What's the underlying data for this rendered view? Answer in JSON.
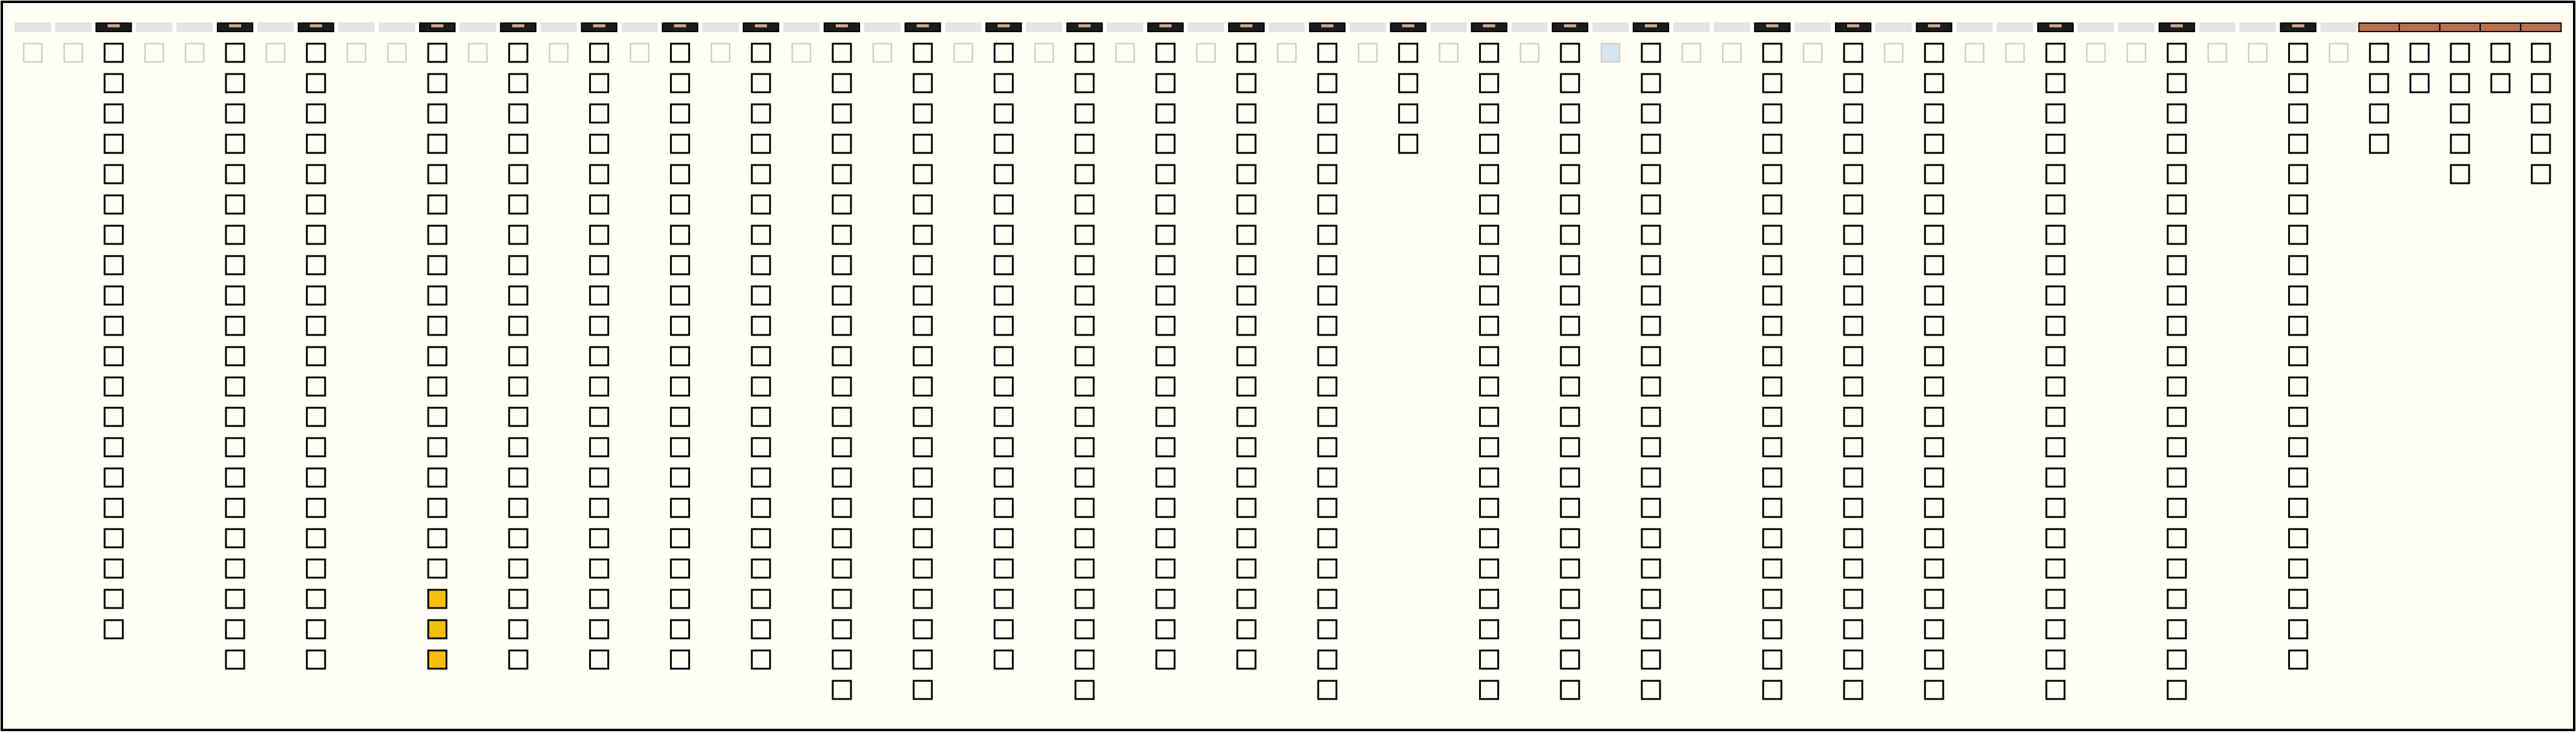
{
  "columns": [
    {
      "enabled": false,
      "header": "light",
      "checked": [
        false
      ]
    },
    {
      "enabled": false,
      "header": "light",
      "checked": [
        false
      ]
    },
    {
      "enabled": true,
      "header": "dark",
      "checked": [
        false,
        false,
        false,
        false,
        false,
        false,
        false,
        false,
        false,
        false,
        false,
        false,
        false,
        false,
        false,
        false,
        false,
        false,
        false,
        false
      ]
    },
    {
      "enabled": false,
      "header": "light",
      "checked": [
        false
      ]
    },
    {
      "enabled": false,
      "header": "light",
      "checked": [
        false
      ]
    },
    {
      "enabled": true,
      "header": "dark",
      "checked": [
        false,
        false,
        false,
        false,
        false,
        false,
        false,
        false,
        false,
        false,
        false,
        false,
        false,
        false,
        false,
        false,
        false,
        false,
        false,
        false,
        false
      ]
    },
    {
      "enabled": false,
      "header": "light",
      "checked": [
        false
      ]
    },
    {
      "enabled": true,
      "header": "dark",
      "checked": [
        false,
        false,
        false,
        false,
        false,
        false,
        false,
        false,
        false,
        false,
        false,
        false,
        false,
        false,
        false,
        false,
        false,
        false,
        false,
        false,
        false
      ]
    },
    {
      "enabled": false,
      "header": "light",
      "checked": [
        false
      ]
    },
    {
      "enabled": false,
      "header": "light",
      "checked": [
        false
      ]
    },
    {
      "enabled": true,
      "header": "dark",
      "checked": [
        false,
        false,
        false,
        false,
        false,
        false,
        false,
        false,
        false,
        false,
        false,
        false,
        false,
        false,
        false,
        false,
        false,
        false,
        true,
        true,
        true
      ]
    },
    {
      "enabled": false,
      "header": "light",
      "checked": [
        false
      ]
    },
    {
      "enabled": true,
      "header": "dark",
      "checked": [
        false,
        false,
        false,
        false,
        false,
        false,
        false,
        false,
        false,
        false,
        false,
        false,
        false,
        false,
        false,
        false,
        false,
        false,
        false,
        false,
        false
      ]
    },
    {
      "enabled": false,
      "header": "light",
      "checked": [
        false
      ]
    },
    {
      "enabled": true,
      "header": "dark",
      "checked": [
        false,
        false,
        false,
        false,
        false,
        false,
        false,
        false,
        false,
        false,
        false,
        false,
        false,
        false,
        false,
        false,
        false,
        false,
        false,
        false,
        false
      ]
    },
    {
      "enabled": false,
      "header": "light",
      "checked": [
        false
      ]
    },
    {
      "enabled": true,
      "header": "dark",
      "checked": [
        false,
        false,
        false,
        false,
        false,
        false,
        false,
        false,
        false,
        false,
        false,
        false,
        false,
        false,
        false,
        false,
        false,
        false,
        false,
        false,
        false
      ]
    },
    {
      "enabled": false,
      "header": "light",
      "checked": [
        false
      ]
    },
    {
      "enabled": true,
      "header": "dark",
      "checked": [
        false,
        false,
        false,
        false,
        false,
        false,
        false,
        false,
        false,
        false,
        false,
        false,
        false,
        false,
        false,
        false,
        false,
        false,
        false,
        false,
        false
      ]
    },
    {
      "enabled": false,
      "header": "light",
      "checked": [
        false
      ]
    },
    {
      "enabled": true,
      "header": "dark",
      "checked": [
        false,
        false,
        false,
        false,
        false,
        false,
        false,
        false,
        false,
        false,
        false,
        false,
        false,
        false,
        false,
        false,
        false,
        false,
        false,
        false,
        false,
        false
      ]
    },
    {
      "enabled": false,
      "header": "light",
      "checked": [
        false
      ]
    },
    {
      "enabled": true,
      "header": "dark",
      "checked": [
        false,
        false,
        false,
        false,
        false,
        false,
        false,
        false,
        false,
        false,
        false,
        false,
        false,
        false,
        false,
        false,
        false,
        false,
        false,
        false,
        false,
        false
      ]
    },
    {
      "enabled": false,
      "header": "light",
      "checked": [
        false
      ]
    },
    {
      "enabled": true,
      "header": "dark",
      "checked": [
        false,
        false,
        false,
        false,
        false,
        false,
        false,
        false,
        false,
        false,
        false,
        false,
        false,
        false,
        false,
        false,
        false,
        false,
        false,
        false,
        false
      ]
    },
    {
      "enabled": false,
      "header": "light",
      "checked": [
        false
      ]
    },
    {
      "enabled": true,
      "header": "dark",
      "checked": [
        false,
        false,
        false,
        false,
        false,
        false,
        false,
        false,
        false,
        false,
        false,
        false,
        false,
        false,
        false,
        false,
        false,
        false,
        false,
        false,
        false,
        false
      ]
    },
    {
      "enabled": false,
      "header": "light",
      "checked": [
        false
      ]
    },
    {
      "enabled": true,
      "header": "dark",
      "checked": [
        false,
        false,
        false,
        false,
        false,
        false,
        false,
        false,
        false,
        false,
        false,
        false,
        false,
        false,
        false,
        false,
        false,
        false,
        false,
        false,
        false
      ]
    },
    {
      "enabled": false,
      "header": "light",
      "checked": [
        false
      ]
    },
    {
      "enabled": true,
      "header": "dark",
      "checked": [
        false,
        false,
        false,
        false,
        false,
        false,
        false,
        false,
        false,
        false,
        false,
        false,
        false,
        false,
        false,
        false,
        false,
        false,
        false,
        false,
        false
      ]
    },
    {
      "enabled": false,
      "header": "light",
      "checked": [
        false
      ]
    },
    {
      "enabled": true,
      "header": "dark",
      "checked": [
        false,
        false,
        false,
        false,
        false,
        false,
        false,
        false,
        false,
        false,
        false,
        false,
        false,
        false,
        false,
        false,
        false,
        false,
        false,
        false,
        false,
        false
      ]
    },
    {
      "enabled": false,
      "header": "light",
      "checked": [
        false
      ]
    },
    {
      "enabled": true,
      "header": "dark",
      "checked": [
        false,
        false,
        false,
        false
      ]
    },
    {
      "enabled": false,
      "header": "light",
      "checked": [
        false
      ]
    },
    {
      "enabled": true,
      "header": "dark",
      "checked": [
        false,
        false,
        false,
        false,
        false,
        false,
        false,
        false,
        false,
        false,
        false,
        false,
        false,
        false,
        false,
        false,
        false,
        false,
        false,
        false,
        false,
        false
      ]
    },
    {
      "enabled": false,
      "header": "light",
      "checked": [
        false
      ]
    },
    {
      "enabled": true,
      "header": "dark",
      "checked": [
        false,
        false,
        false,
        false,
        false,
        false,
        false,
        false,
        false,
        false,
        false,
        false,
        false,
        false,
        false,
        false,
        false,
        false,
        false,
        false,
        false,
        false
      ]
    },
    {
      "enabled": false,
      "header": "light",
      "checked": [
        true
      ]
    },
    {
      "enabled": true,
      "header": "dark",
      "checked": [
        false,
        false,
        false,
        false,
        false,
        false,
        false,
        false,
        false,
        false,
        false,
        false,
        false,
        false,
        false,
        false,
        false,
        false,
        false,
        false,
        false,
        false
      ]
    },
    {
      "enabled": false,
      "header": "light",
      "checked": [
        false
      ]
    },
    {
      "enabled": false,
      "header": "light",
      "checked": [
        false
      ]
    },
    {
      "enabled": true,
      "header": "dark",
      "checked": [
        false,
        false,
        false,
        false,
        false,
        false,
        false,
        false,
        false,
        false,
        false,
        false,
        false,
        false,
        false,
        false,
        false,
        false,
        false,
        false,
        false,
        false
      ]
    },
    {
      "enabled": false,
      "header": "light",
      "checked": [
        false
      ]
    },
    {
      "enabled": true,
      "header": "dark",
      "checked": [
        false,
        false,
        false,
        false,
        false,
        false,
        false,
        false,
        false,
        false,
        false,
        false,
        false,
        false,
        false,
        false,
        false,
        false,
        false,
        false,
        false,
        false
      ]
    },
    {
      "enabled": false,
      "header": "light",
      "checked": [
        false
      ]
    },
    {
      "enabled": true,
      "header": "dark",
      "checked": [
        false,
        false,
        false,
        false,
        false,
        false,
        false,
        false,
        false,
        false,
        false,
        false,
        false,
        false,
        false,
        false,
        false,
        false,
        false,
        false,
        false,
        false
      ]
    },
    {
      "enabled": false,
      "header": "light",
      "checked": [
        false
      ]
    },
    {
      "enabled": false,
      "header": "light",
      "checked": [
        false
      ]
    },
    {
      "enabled": true,
      "header": "dark",
      "checked": [
        false,
        false,
        false,
        false,
        false,
        false,
        false,
        false,
        false,
        false,
        false,
        false,
        false,
        false,
        false,
        false,
        false,
        false,
        false,
        false,
        false,
        false
      ]
    },
    {
      "enabled": false,
      "header": "light",
      "checked": [
        false
      ]
    },
    {
      "enabled": false,
      "header": "light",
      "checked": [
        false
      ]
    },
    {
      "enabled": true,
      "header": "dark",
      "checked": [
        false,
        false,
        false,
        false,
        false,
        false,
        false,
        false,
        false,
        false,
        false,
        false,
        false,
        false,
        false,
        false,
        false,
        false,
        false,
        false,
        false,
        false
      ]
    },
    {
      "enabled": false,
      "header": "light",
      "checked": [
        false
      ]
    },
    {
      "enabled": false,
      "header": "light",
      "checked": [
        false
      ]
    },
    {
      "enabled": true,
      "header": "dark",
      "checked": [
        false,
        false,
        false,
        false,
        false,
        false,
        false,
        false,
        false,
        false,
        false,
        false,
        false,
        false,
        false,
        false,
        false,
        false,
        false,
        false,
        false
      ]
    },
    {
      "enabled": false,
      "header": "light",
      "checked": [
        false
      ]
    },
    {
      "enabled": true,
      "header": "accent",
      "checked": [
        false,
        false,
        false,
        false
      ]
    },
    {
      "enabled": true,
      "header": "accent",
      "checked": [
        false,
        false
      ]
    },
    {
      "enabled": true,
      "header": "accent",
      "checked": [
        false,
        false,
        false,
        false,
        false
      ]
    },
    {
      "enabled": true,
      "header": "accent",
      "checked": [
        false,
        false
      ]
    },
    {
      "enabled": true,
      "header": "accent",
      "checked": [
        false,
        false,
        false,
        false,
        false
      ]
    }
  ]
}
